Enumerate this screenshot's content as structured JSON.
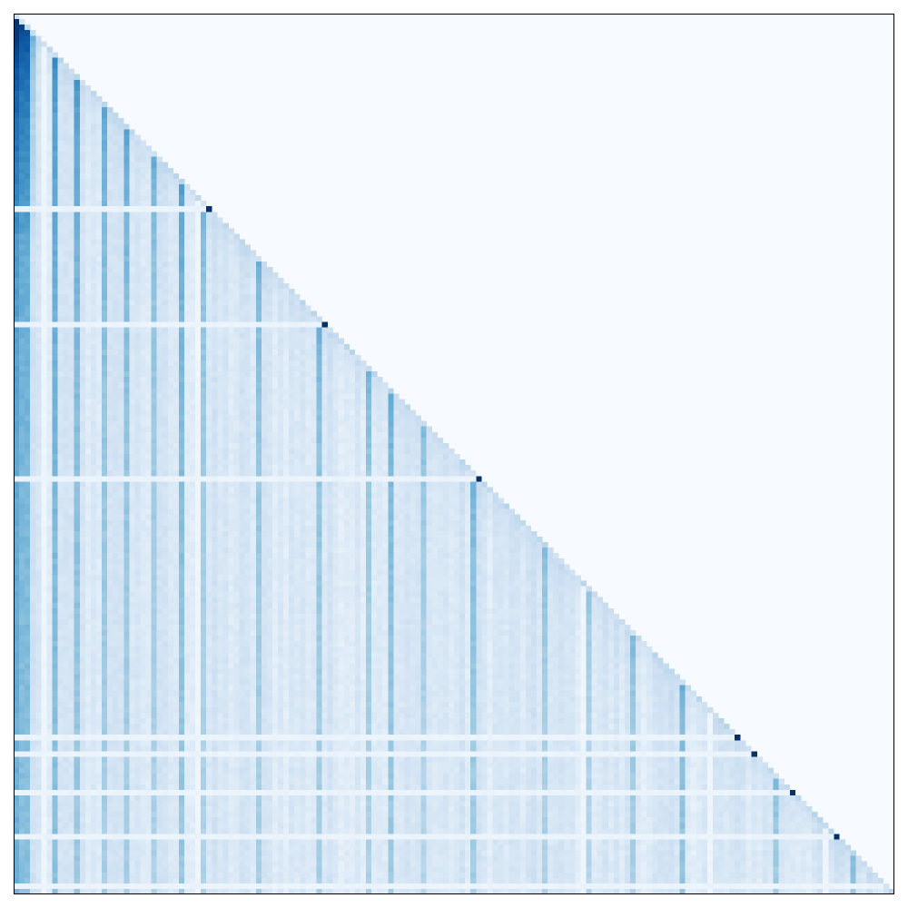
{
  "chart_data": {
    "type": "heatmap",
    "title": "",
    "xlabel": "",
    "ylabel": "",
    "shape": "lower-triangular",
    "matrix_size": 160,
    "colormap": "Blues",
    "value_range": [
      0,
      1
    ],
    "axes_ticks": "none",
    "grid": false,
    "legend": "none",
    "colors": {
      "background": "#f7fbff",
      "low": "#f7fbff",
      "high": "#08306b",
      "frame": "#000000"
    },
    "diagonal_peaks": [
      {
        "index": 35,
        "value": 1.0
      },
      {
        "index": 56,
        "value": 1.0
      },
      {
        "index": 84,
        "value": 1.0
      },
      {
        "index": 131,
        "value": 1.0
      },
      {
        "index": 134,
        "value": 1.0
      },
      {
        "index": 141,
        "value": 1.0
      },
      {
        "index": 149,
        "value": 1.0
      }
    ],
    "strong_columns": [
      {
        "index": 0,
        "value": 0.55
      },
      {
        "index": 1,
        "value": 0.5
      },
      {
        "index": 2,
        "value": 0.45
      },
      {
        "index": 7,
        "value": 0.4
      },
      {
        "index": 11,
        "value": 0.42
      },
      {
        "index": 16,
        "value": 0.38
      },
      {
        "index": 20,
        "value": 0.4
      },
      {
        "index": 25,
        "value": 0.32
      },
      {
        "index": 30,
        "value": 0.34
      },
      {
        "index": 34,
        "value": 0.3
      },
      {
        "index": 44,
        "value": 0.3
      },
      {
        "index": 55,
        "value": 0.32
      },
      {
        "index": 64,
        "value": 0.3
      },
      {
        "index": 68,
        "value": 0.3
      },
      {
        "index": 74,
        "value": 0.3
      },
      {
        "index": 83,
        "value": 0.3
      },
      {
        "index": 96,
        "value": 0.28
      },
      {
        "index": 104,
        "value": 0.26
      },
      {
        "index": 112,
        "value": 0.26
      },
      {
        "index": 121,
        "value": 0.26
      },
      {
        "index": 138,
        "value": 0.26
      },
      {
        "index": 152,
        "value": 0.24
      }
    ],
    "weak_columns": [
      5,
      33,
      103,
      126,
      147
    ],
    "weak_rows": [
      35,
      56,
      84,
      131,
      134,
      141,
      149,
      158
    ]
  }
}
